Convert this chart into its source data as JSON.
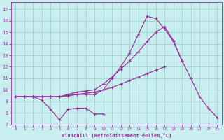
{
  "xlabel": "Windchill (Refroidissement éolien,°C)",
  "bg_color": "#c8eef0",
  "line_color": "#993399",
  "grid_color": "#99cccc",
  "xlim": [
    -0.5,
    23.5
  ],
  "ylim": [
    7,
    17.6
  ],
  "yticks": [
    7,
    8,
    9,
    10,
    11,
    12,
    13,
    14,
    15,
    16,
    17
  ],
  "xticks": [
    0,
    1,
    2,
    3,
    4,
    5,
    6,
    7,
    8,
    9,
    10,
    11,
    12,
    13,
    14,
    15,
    16,
    17,
    18,
    19,
    20,
    21,
    22,
    23
  ],
  "series": [
    {
      "x": [
        0,
        1,
        2,
        3,
        4,
        5,
        6,
        7,
        8,
        9,
        10,
        11,
        12,
        13,
        14,
        15,
        16,
        17,
        18,
        19,
        20,
        21,
        22,
        23
      ],
      "y": [
        9.4,
        9.4,
        9.4,
        9.4,
        9.4,
        9.4,
        9.5,
        9.6,
        9.6,
        9.6,
        10.0,
        11.0,
        12.0,
        13.2,
        14.8,
        16.4,
        16.2,
        15.3,
        14.2,
        12.5,
        11.0,
        9.4,
        8.4,
        7.6
      ]
    },
    {
      "x": [
        0,
        1,
        2,
        3,
        4,
        5,
        6,
        7,
        8,
        9,
        10,
        11,
        12,
        13,
        14,
        15,
        16,
        17,
        18,
        19
      ],
      "y": [
        9.4,
        9.4,
        9.4,
        9.4,
        9.4,
        9.4,
        9.6,
        9.8,
        9.9,
        10.0,
        10.5,
        11.1,
        11.8,
        12.5,
        13.3,
        14.2,
        15.0,
        15.5,
        14.3,
        12.5
      ]
    },
    {
      "x": [
        0,
        1,
        2,
        3,
        4,
        5,
        6,
        7,
        8,
        9,
        10,
        11,
        12,
        13,
        14,
        15,
        16,
        17,
        18,
        19,
        20,
        21,
        22,
        23
      ],
      "y": [
        9.4,
        9.4,
        9.4,
        9.4,
        9.4,
        9.4,
        9.5,
        9.6,
        9.7,
        9.8,
        10.0,
        10.2,
        10.5,
        10.8,
        11.1,
        11.4,
        11.7,
        12.0,
        null,
        null,
        null,
        null,
        null,
        null
      ]
    },
    {
      "x": [
        0,
        1,
        2,
        3,
        4,
        5,
        6,
        7,
        8,
        9,
        10,
        11,
        12,
        13,
        14,
        15,
        16,
        17,
        18,
        19,
        20,
        21,
        22,
        23
      ],
      "y": [
        9.4,
        9.4,
        9.4,
        9.1,
        8.3,
        7.4,
        8.3,
        8.4,
        8.4,
        7.9,
        7.9,
        null,
        null,
        null,
        null,
        null,
        null,
        null,
        null,
        null,
        null,
        null,
        null,
        null
      ]
    }
  ]
}
